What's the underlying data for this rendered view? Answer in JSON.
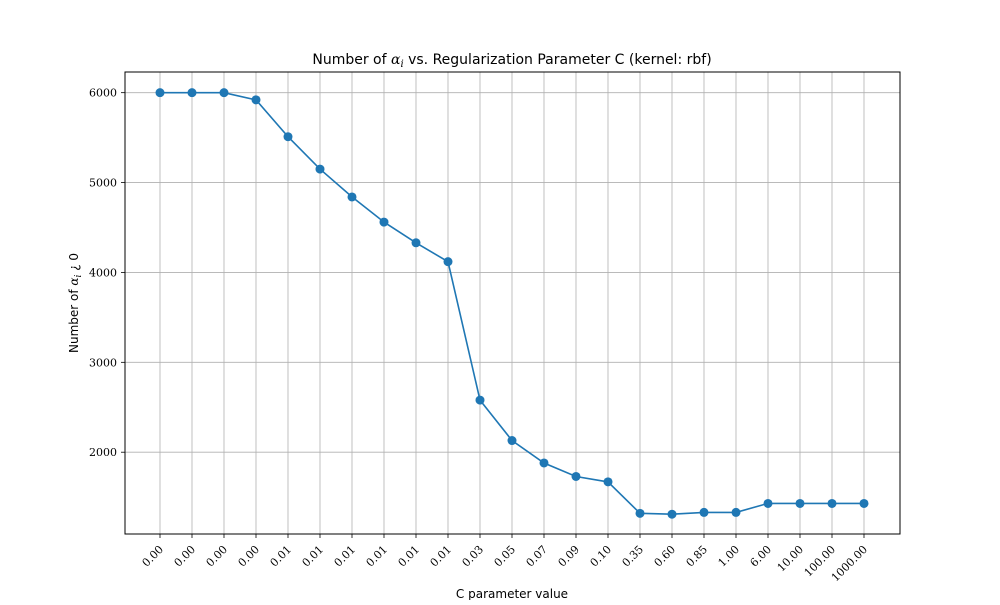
{
  "chart_data": {
    "type": "line",
    "title": {
      "prefix": "Number of ",
      "symbol": "α",
      "subscript": "i",
      "suffix": " vs. Regularization Parameter C (kernel: rbf)"
    },
    "xlabel": "C parameter value",
    "ylabel": {
      "prefix": "Number of ",
      "symbol": "α",
      "subscript": "i",
      "suffix": " ¿ 0"
    },
    "categories": [
      "0.00",
      "0.00",
      "0.00",
      "0.00",
      "0.01",
      "0.01",
      "0.01",
      "0.01",
      "0.01",
      "0.01",
      "0.03",
      "0.05",
      "0.07",
      "0.09",
      "0.10",
      "0.35",
      "0.60",
      "0.85",
      "1.00",
      "6.00",
      "10.00",
      "100.00",
      "1000.00"
    ],
    "series": [
      {
        "color": "#1f77b4",
        "values": [
          6000,
          6000,
          6000,
          5920,
          5510,
          5150,
          4840,
          4560,
          4330,
          4120,
          2580,
          2130,
          1880,
          1730,
          1670,
          1320,
          1310,
          1330,
          1330,
          1430,
          1430,
          1430,
          1430
        ]
      }
    ],
    "yticks": [
      2000,
      3000,
      4000,
      5000,
      6000
    ],
    "ylim": [
      1090,
      6230
    ],
    "grid": true,
    "legend": null
  }
}
